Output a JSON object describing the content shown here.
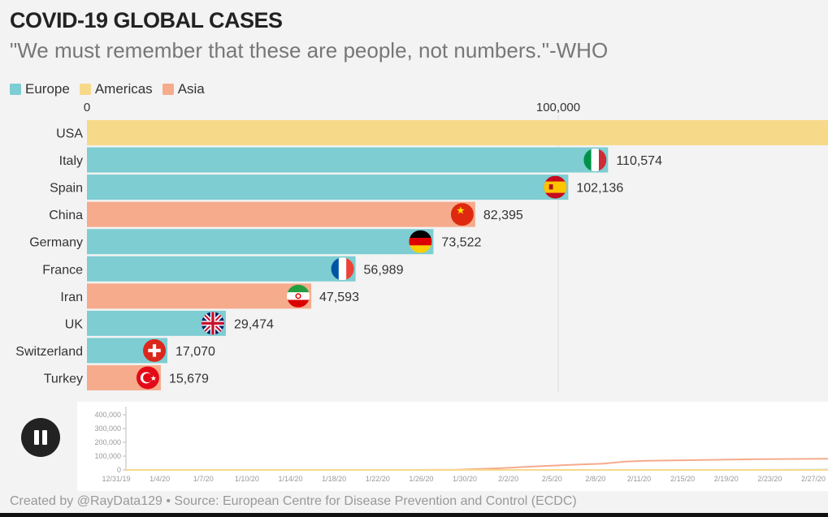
{
  "header": {
    "title": "COVID-19 GLOBAL CASES",
    "subtitle": "\"We must remember that these are people, not numbers.\"-WHO"
  },
  "legend": [
    {
      "label": "Europe",
      "color": "#7dcdd2"
    },
    {
      "label": "Americas",
      "color": "#f7d98a"
    },
    {
      "label": "Asia",
      "color": "#f5ab8c"
    }
  ],
  "chart_data": {
    "type": "bar",
    "orientation": "horizontal",
    "title": "COVID-19 GLOBAL CASES",
    "axis_ticks": [
      0,
      100000
    ],
    "axis_tick_labels": [
      "0",
      "100,000"
    ],
    "bars": [
      {
        "country": "USA",
        "region": "Americas",
        "value": 163000,
        "label": "",
        "flag": "usa-flag"
      },
      {
        "country": "Italy",
        "region": "Europe",
        "value": 110574,
        "label": "110,574",
        "flag": "italy-flag"
      },
      {
        "country": "Spain",
        "region": "Europe",
        "value": 102136,
        "label": "102,136",
        "flag": "spain-flag"
      },
      {
        "country": "China",
        "region": "Asia",
        "value": 82395,
        "label": "82,395",
        "flag": "china-flag"
      },
      {
        "country": "Germany",
        "region": "Europe",
        "value": 73522,
        "label": "73,522",
        "flag": "germany-flag"
      },
      {
        "country": "France",
        "region": "Europe",
        "value": 56989,
        "label": "56,989",
        "flag": "france-flag"
      },
      {
        "country": "Iran",
        "region": "Asia",
        "value": 47593,
        "label": "47,593",
        "flag": "iran-flag"
      },
      {
        "country": "UK",
        "region": "Europe",
        "value": 29474,
        "label": "29,474",
        "flag": "uk-flag"
      },
      {
        "country": "Switzerland",
        "region": "Europe",
        "value": 17070,
        "label": "17,070",
        "flag": "switzerland-flag"
      },
      {
        "country": "Turkey",
        "region": "Asia",
        "value": 15679,
        "label": "15,679",
        "flag": "turkey-flag"
      }
    ],
    "region_colors": {
      "Europe": "#7dcdd2",
      "Americas": "#f7d98a",
      "Asia": "#f5ab8c"
    },
    "timeline": {
      "type": "line",
      "y_ticks": [
        "400,000",
        "300,000",
        "200,000",
        "100,000",
        "0"
      ],
      "y_values": [
        400000,
        300000,
        200000,
        100000,
        0
      ],
      "x_labels": [
        "12/31/19",
        "1/4/20",
        "1/7/20",
        "1/10/20",
        "1/14/20",
        "1/18/20",
        "1/22/20",
        "1/26/20",
        "1/30/20",
        "2/2/20",
        "2/5/20",
        "2/8/20",
        "2/11/20",
        "2/15/20",
        "2/19/20",
        "2/23/20",
        "2/27/20"
      ],
      "series": [
        {
          "region": "Asia",
          "color": "#f5ab8c",
          "points": [
            [
              0,
              0
            ],
            [
              0.4,
              0
            ],
            [
              0.47,
              2000
            ],
            [
              0.53,
              12000
            ],
            [
              0.58,
              25000
            ],
            [
              0.64,
              38000
            ],
            [
              0.68,
              45000
            ],
            [
              0.71,
              60000
            ],
            [
              0.74,
              66000
            ],
            [
              0.82,
              72000
            ],
            [
              0.9,
              78000
            ],
            [
              0.97,
              80000
            ],
            [
              1.0,
              81000
            ]
          ]
        },
        {
          "region": "Europe",
          "color": "#7dcdd2",
          "points": [
            [
              0,
              0
            ],
            [
              0.9,
              0
            ],
            [
              1.0,
              1500
            ]
          ]
        },
        {
          "region": "Americas",
          "color": "#f7d98a",
          "points": [
            [
              0,
              0
            ],
            [
              1.0,
              200
            ]
          ]
        }
      ]
    }
  },
  "controls": {
    "pause_icon": "pause-icon"
  },
  "footer": {
    "credit": "Created by @RayData129 • Source: European Centre for Disease Prevention and Control (ECDC)"
  }
}
